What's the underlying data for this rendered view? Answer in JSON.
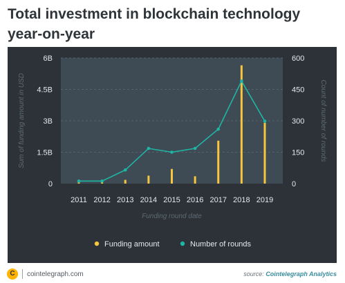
{
  "header": {
    "title": "Total investment in blockchain technology year-on-year"
  },
  "colors": {
    "card_bg": "#2c3238",
    "plot_bg": "#3e4a54",
    "funding": "#f7c63d",
    "rounds": "#1fb5a4",
    "axis_text": "#e6e8ea",
    "axis_title": "#5f6a74"
  },
  "chart_data": {
    "type": "bar",
    "xlabel": "Funding round date",
    "ylabel": "Sum of funding amount in USD",
    "ylabel_right": "Count of number of rounds",
    "categories": [
      "2011",
      "2012",
      "2013",
      "2014",
      "2015",
      "2016",
      "2017",
      "2018",
      "2019"
    ],
    "ylim": [
      0,
      6000000000
    ],
    "ylim_right": [
      0,
      600
    ],
    "y_ticks": [
      {
        "value": 0,
        "label": "0"
      },
      {
        "value": 1500000000,
        "label": "1.5B"
      },
      {
        "value": 3000000000,
        "label": "3B"
      },
      {
        "value": 4500000000,
        "label": "4.5B"
      },
      {
        "value": 6000000000,
        "label": "6B"
      }
    ],
    "y_ticks_right": [
      {
        "value": 0,
        "label": "0"
      },
      {
        "value": 150,
        "label": "150"
      },
      {
        "value": 300,
        "label": "300"
      },
      {
        "value": 450,
        "label": "450"
      },
      {
        "value": 600,
        "label": "600"
      }
    ],
    "series": [
      {
        "name": "Funding amount",
        "type": "bar",
        "axis": "left",
        "values": [
          50000000,
          80000000,
          180000000,
          380000000,
          700000000,
          350000000,
          2050000000,
          5650000000,
          2900000000
        ]
      },
      {
        "name": "Number of rounds",
        "type": "line",
        "axis": "right",
        "values": [
          12,
          12,
          65,
          168,
          150,
          168,
          260,
          490,
          298
        ]
      }
    ],
    "legend": "bottom",
    "grid": true
  },
  "footer": {
    "logo_letter": "C",
    "site": "cointelegraph.com",
    "source_label": "source:",
    "source_name": "Cointelegraph Analytics"
  }
}
